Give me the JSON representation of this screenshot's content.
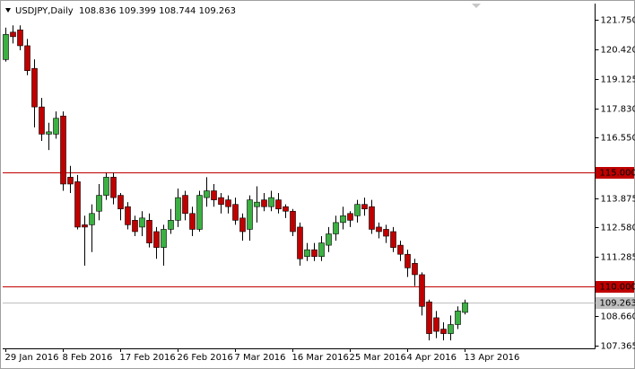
{
  "chart_data": {
    "type": "candlestick",
    "title": "USDJPY,Daily",
    "header_ohlc": "108.836 109.399 108.744 109.263",
    "up_color": "#3cb043",
    "down_color": "#c00000",
    "categories": [
      "29 Jan 2016",
      null,
      null,
      null,
      null,
      null,
      null,
      null,
      "8 Feb 2016",
      null,
      null,
      null,
      null,
      null,
      null,
      null,
      "17 Feb 2016",
      null,
      null,
      null,
      null,
      null,
      null,
      null,
      "26 Feb 2016",
      null,
      null,
      null,
      null,
      null,
      null,
      null,
      "7 Mar 2016",
      null,
      null,
      null,
      null,
      null,
      null,
      null,
      "16 Mar 2016",
      null,
      null,
      null,
      null,
      null,
      null,
      null,
      "25 Mar 2016",
      null,
      null,
      null,
      null,
      null,
      null,
      null,
      "4 Apr 2016",
      null,
      null,
      null,
      null,
      null,
      null,
      null,
      "13 Apr 2016"
    ],
    "open": [
      119.99,
      121.2,
      121.3,
      120.6,
      119.6,
      117.9,
      116.7,
      116.7,
      117.5,
      114.8,
      114.6,
      112.7,
      112.7,
      113.3,
      114.0,
      114.8,
      114.0,
      113.5,
      112.9,
      112.6,
      112.9,
      112.4,
      111.7,
      112.5,
      112.9,
      114.0,
      113.2,
      112.5,
      113.9,
      114.2,
      113.9,
      113.8,
      113.6,
      113.0,
      112.5,
      113.5,
      113.8,
      113.5,
      113.8,
      113.5,
      113.3,
      112.6,
      111.3,
      111.6,
      111.3,
      111.8,
      112.3,
      112.8,
      113.2,
      113.1,
      113.6,
      113.5,
      112.6,
      112.5,
      112.4,
      111.8,
      111.4,
      111.0,
      110.5,
      109.3,
      108.6,
      108.1,
      107.9,
      108.3,
      108.836
    ],
    "high": [
      121.4,
      121.5,
      121.5,
      120.9,
      120.0,
      118.3,
      117.2,
      117.7,
      117.7,
      115.3,
      114.9,
      113.1,
      113.6,
      114.5,
      115.0,
      115.0,
      114.1,
      113.7,
      113.1,
      113.3,
      113.2,
      112.6,
      112.7,
      113.4,
      114.3,
      114.2,
      113.5,
      114.2,
      114.8,
      114.5,
      114.1,
      114.0,
      113.9,
      113.2,
      114.0,
      114.4,
      114.1,
      114.2,
      114.1,
      113.6,
      113.4,
      112.8,
      111.9,
      111.9,
      112.2,
      112.6,
      113.1,
      113.5,
      113.3,
      113.8,
      113.9,
      113.8,
      112.8,
      112.7,
      112.6,
      112.0,
      111.6,
      111.2,
      110.6,
      109.4,
      108.9,
      108.4,
      108.7,
      109.1,
      109.399
    ],
    "low": [
      119.9,
      120.7,
      120.4,
      119.3,
      117.0,
      116.4,
      116.0,
      116.5,
      114.2,
      114.1,
      112.5,
      110.9,
      111.5,
      112.9,
      113.8,
      113.6,
      112.9,
      112.5,
      112.2,
      112.2,
      111.7,
      111.2,
      110.9,
      112.3,
      112.6,
      112.9,
      112.2,
      112.4,
      113.5,
      113.5,
      113.2,
      113.2,
      112.7,
      112.0,
      112.0,
      112.8,
      113.3,
      113.3,
      113.2,
      113.0,
      112.2,
      110.9,
      111.1,
      111.1,
      111.1,
      111.5,
      112.0,
      112.5,
      112.6,
      112.8,
      113.1,
      112.3,
      112.1,
      111.9,
      111.5,
      111.1,
      110.4,
      110.0,
      108.7,
      107.6,
      107.7,
      107.6,
      107.6,
      108.1,
      108.744
    ],
    "close": [
      121.1,
      121.0,
      120.6,
      119.5,
      117.9,
      116.7,
      116.8,
      117.4,
      114.5,
      114.5,
      112.6,
      112.6,
      113.2,
      114.0,
      114.8,
      113.9,
      113.4,
      112.7,
      112.4,
      113.0,
      111.9,
      111.7,
      112.5,
      112.9,
      113.9,
      113.2,
      112.5,
      114.0,
      114.2,
      113.8,
      113.6,
      113.5,
      112.9,
      112.4,
      113.8,
      113.7,
      113.5,
      113.9,
      113.4,
      113.3,
      112.4,
      111.2,
      111.6,
      111.3,
      111.9,
      112.3,
      112.8,
      113.1,
      112.9,
      113.6,
      113.4,
      112.5,
      112.4,
      112.2,
      111.7,
      111.4,
      110.8,
      110.5,
      109.1,
      107.9,
      108.0,
      107.9,
      108.3,
      108.9,
      109.263
    ],
    "ylim": [
      107.25,
      122.42
    ],
    "yticks": [
      {
        "value": 121.75,
        "label": "121.750"
      },
      {
        "value": 120.42,
        "label": "120.420"
      },
      {
        "value": 119.125,
        "label": "119.125"
      },
      {
        "value": 117.83,
        "label": "117.830"
      },
      {
        "value": 116.55,
        "label": "116.550"
      },
      {
        "value": 113.875,
        "label": "113.875"
      },
      {
        "value": 112.58,
        "label": "112.580"
      },
      {
        "value": 111.285,
        "label": "111.285"
      },
      {
        "value": 108.66,
        "label": "108.660"
      },
      {
        "value": 107.365,
        "label": "107.365"
      }
    ],
    "hlines": [
      {
        "value": 115,
        "label": "115.000",
        "color": "#c00000"
      },
      {
        "value": 110,
        "label": "110.000",
        "color": "#c00000"
      }
    ],
    "current_price": {
      "value": 109.263,
      "label": "109.263",
      "color": "#c0c0c0"
    }
  }
}
